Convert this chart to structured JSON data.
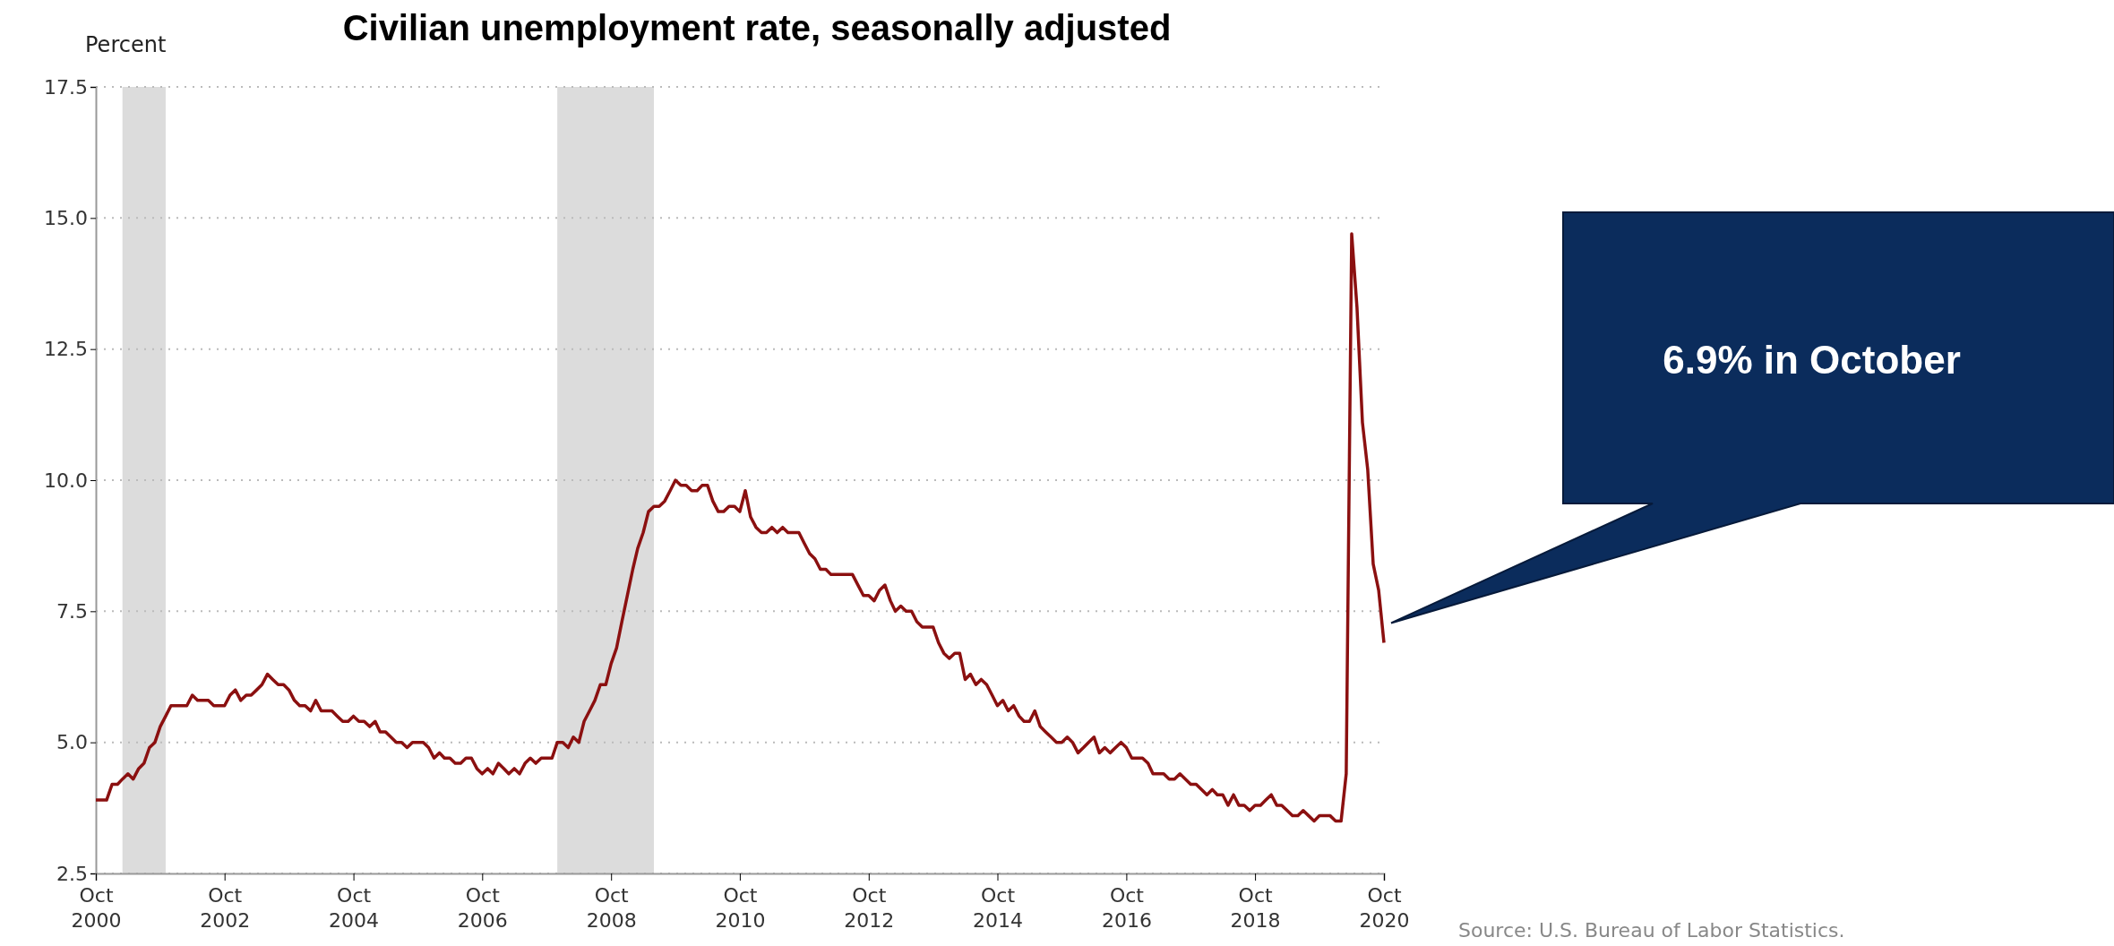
{
  "chart_data": {
    "type": "line",
    "title": "Civilian unemployment rate, seasonally adjusted",
    "ylabel": "Percent",
    "x": [
      "2000-10",
      "2000-11",
      "2000-12",
      "2001-01",
      "2001-02",
      "2001-03",
      "2001-04",
      "2001-05",
      "2001-06",
      "2001-07",
      "2001-08",
      "2001-09",
      "2001-10",
      "2001-11",
      "2001-12",
      "2002-01",
      "2002-02",
      "2002-03",
      "2002-04",
      "2002-05",
      "2002-06",
      "2002-07",
      "2002-08",
      "2002-09",
      "2002-10",
      "2002-11",
      "2002-12",
      "2003-01",
      "2003-02",
      "2003-03",
      "2003-04",
      "2003-05",
      "2003-06",
      "2003-07",
      "2003-08",
      "2003-09",
      "2003-10",
      "2003-11",
      "2003-12",
      "2004-01",
      "2004-02",
      "2004-03",
      "2004-04",
      "2004-05",
      "2004-06",
      "2004-07",
      "2004-08",
      "2004-09",
      "2004-10",
      "2004-11",
      "2004-12",
      "2005-01",
      "2005-02",
      "2005-03",
      "2005-04",
      "2005-05",
      "2005-06",
      "2005-07",
      "2005-08",
      "2005-09",
      "2005-10",
      "2005-11",
      "2005-12",
      "2006-01",
      "2006-02",
      "2006-03",
      "2006-04",
      "2006-05",
      "2006-06",
      "2006-07",
      "2006-08",
      "2006-09",
      "2006-10",
      "2006-11",
      "2006-12",
      "2007-01",
      "2007-02",
      "2007-03",
      "2007-04",
      "2007-05",
      "2007-06",
      "2007-07",
      "2007-08",
      "2007-09",
      "2007-10",
      "2007-11",
      "2007-12",
      "2008-01",
      "2008-02",
      "2008-03",
      "2008-04",
      "2008-05",
      "2008-06",
      "2008-07",
      "2008-08",
      "2008-09",
      "2008-10",
      "2008-11",
      "2008-12",
      "2009-01",
      "2009-02",
      "2009-03",
      "2009-04",
      "2009-05",
      "2009-06",
      "2009-07",
      "2009-08",
      "2009-09",
      "2009-10",
      "2009-11",
      "2009-12",
      "2010-01",
      "2010-02",
      "2010-03",
      "2010-04",
      "2010-05",
      "2010-06",
      "2010-07",
      "2010-08",
      "2010-09",
      "2010-10",
      "2010-11",
      "2010-12",
      "2011-01",
      "2011-02",
      "2011-03",
      "2011-04",
      "2011-05",
      "2011-06",
      "2011-07",
      "2011-08",
      "2011-09",
      "2011-10",
      "2011-11",
      "2011-12",
      "2012-01",
      "2012-02",
      "2012-03",
      "2012-04",
      "2012-05",
      "2012-06",
      "2012-07",
      "2012-08",
      "2012-09",
      "2012-10",
      "2012-11",
      "2012-12",
      "2013-01",
      "2013-02",
      "2013-03",
      "2013-04",
      "2013-05",
      "2013-06",
      "2013-07",
      "2013-08",
      "2013-09",
      "2013-10",
      "2013-11",
      "2013-12",
      "2014-01",
      "2014-02",
      "2014-03",
      "2014-04",
      "2014-05",
      "2014-06",
      "2014-07",
      "2014-08",
      "2014-09",
      "2014-10",
      "2014-11",
      "2014-12",
      "2015-01",
      "2015-02",
      "2015-03",
      "2015-04",
      "2015-05",
      "2015-06",
      "2015-07",
      "2015-08",
      "2015-09",
      "2015-10",
      "2015-11",
      "2015-12",
      "2016-01",
      "2016-02",
      "2016-03",
      "2016-04",
      "2016-05",
      "2016-06",
      "2016-07",
      "2016-08",
      "2016-09",
      "2016-10",
      "2016-11",
      "2016-12",
      "2017-01",
      "2017-02",
      "2017-03",
      "2017-04",
      "2017-05",
      "2017-06",
      "2017-07",
      "2017-08",
      "2017-09",
      "2017-10",
      "2017-11",
      "2017-12",
      "2018-01",
      "2018-02",
      "2018-03",
      "2018-04",
      "2018-05",
      "2018-06",
      "2018-07",
      "2018-08",
      "2018-09",
      "2018-10",
      "2018-11",
      "2018-12",
      "2019-01",
      "2019-02",
      "2019-03",
      "2019-04",
      "2019-05",
      "2019-06",
      "2019-07",
      "2019-08",
      "2019-09",
      "2019-10",
      "2019-11",
      "2019-12",
      "2020-01",
      "2020-02",
      "2020-03",
      "2020-04",
      "2020-05",
      "2020-06",
      "2020-07",
      "2020-08",
      "2020-09",
      "2020-10"
    ],
    "series": [
      {
        "color": "#8b1010",
        "values": [
          3.9,
          3.9,
          3.9,
          4.2,
          4.2,
          4.3,
          4.4,
          4.3,
          4.5,
          4.6,
          4.9,
          5.0,
          5.3,
          5.5,
          5.7,
          5.7,
          5.7,
          5.7,
          5.9,
          5.8,
          5.8,
          5.8,
          5.7,
          5.7,
          5.7,
          5.9,
          6.0,
          5.8,
          5.9,
          5.9,
          6.0,
          6.1,
          6.3,
          6.2,
          6.1,
          6.1,
          6.0,
          5.8,
          5.7,
          5.7,
          5.6,
          5.8,
          5.6,
          5.6,
          5.6,
          5.5,
          5.4,
          5.4,
          5.5,
          5.4,
          5.4,
          5.3,
          5.4,
          5.2,
          5.2,
          5.1,
          5.0,
          5.0,
          4.9,
          5.0,
          5.0,
          5.0,
          4.9,
          4.7,
          4.8,
          4.7,
          4.7,
          4.6,
          4.6,
          4.7,
          4.7,
          4.5,
          4.4,
          4.5,
          4.4,
          4.6,
          4.5,
          4.4,
          4.5,
          4.4,
          4.6,
          4.7,
          4.6,
          4.7,
          4.7,
          4.7,
          5.0,
          5.0,
          4.9,
          5.1,
          5.0,
          5.4,
          5.6,
          5.8,
          6.1,
          6.1,
          6.5,
          6.8,
          7.3,
          7.8,
          8.3,
          8.7,
          9.0,
          9.4,
          9.5,
          9.5,
          9.6,
          9.8,
          10.0,
          9.9,
          9.9,
          9.8,
          9.8,
          9.9,
          9.9,
          9.6,
          9.4,
          9.4,
          9.5,
          9.5,
          9.4,
          9.8,
          9.3,
          9.1,
          9.0,
          9.0,
          9.1,
          9.0,
          9.1,
          9.0,
          9.0,
          9.0,
          8.8,
          8.6,
          8.5,
          8.3,
          8.3,
          8.2,
          8.2,
          8.2,
          8.2,
          8.2,
          8.0,
          7.8,
          7.8,
          7.7,
          7.9,
          8.0,
          7.7,
          7.5,
          7.6,
          7.5,
          7.5,
          7.3,
          7.2,
          7.2,
          7.2,
          6.9,
          6.7,
          6.6,
          6.7,
          6.7,
          6.2,
          6.3,
          6.1,
          6.2,
          6.1,
          5.9,
          5.7,
          5.8,
          5.6,
          5.7,
          5.5,
          5.4,
          5.4,
          5.6,
          5.3,
          5.2,
          5.1,
          5.0,
          5.0,
          5.1,
          5.0,
          4.8,
          4.9,
          5.0,
          5.1,
          4.8,
          4.9,
          4.8,
          4.9,
          5.0,
          4.9,
          4.7,
          4.7,
          4.7,
          4.6,
          4.4,
          4.4,
          4.4,
          4.3,
          4.3,
          4.4,
          4.3,
          4.2,
          4.2,
          4.1,
          4.0,
          4.1,
          4.0,
          4.0,
          3.8,
          4.0,
          3.8,
          3.8,
          3.7,
          3.8,
          3.8,
          3.9,
          4.0,
          3.8,
          3.8,
          3.7,
          3.6,
          3.6,
          3.7,
          3.6,
          3.5,
          3.6,
          3.6,
          3.6,
          3.5,
          3.5,
          4.4,
          14.7,
          13.3,
          11.1,
          10.2,
          8.4,
          7.9,
          6.9
        ]
      }
    ],
    "xlim": [
      "2000-10",
      "2020-10"
    ],
    "xticks": [
      {
        "value": "2000-10",
        "label": "Oct\n2000"
      },
      {
        "value": "2002-10",
        "label": "Oct\n2002"
      },
      {
        "value": "2004-10",
        "label": "Oct\n2004"
      },
      {
        "value": "2006-10",
        "label": "Oct\n2006"
      },
      {
        "value": "2008-10",
        "label": "Oct\n2008"
      },
      {
        "value": "2010-10",
        "label": "Oct\n2010"
      },
      {
        "value": "2012-10",
        "label": "Oct\n2012"
      },
      {
        "value": "2014-10",
        "label": "Oct\n2014"
      },
      {
        "value": "2016-10",
        "label": "Oct\n2016"
      },
      {
        "value": "2018-10",
        "label": "Oct\n2018"
      },
      {
        "value": "2020-10",
        "label": "Oct\n2020"
      }
    ],
    "ylim": [
      2.5,
      17.5
    ],
    "yticks": [
      2.5,
      {
        "value": 5,
        "label": "5.0"
      },
      7.5,
      {
        "value": 10,
        "label": "10.0"
      },
      12.5,
      {
        "value": 15,
        "label": "15.0"
      },
      17.5
    ],
    "grid": "y",
    "line_style": "solid",
    "bands": [
      {
        "axis": "x",
        "from": "2001-03",
        "to": "2001-11",
        "color": "#dcdcdc"
      },
      {
        "axis": "x",
        "from": "2007-12",
        "to": "2009-06",
        "color": "#dcdcdc"
      }
    ],
    "annotations": [
      "6.9% in October",
      "Source: U.S. Bureau of Labor Statistics."
    ]
  }
}
